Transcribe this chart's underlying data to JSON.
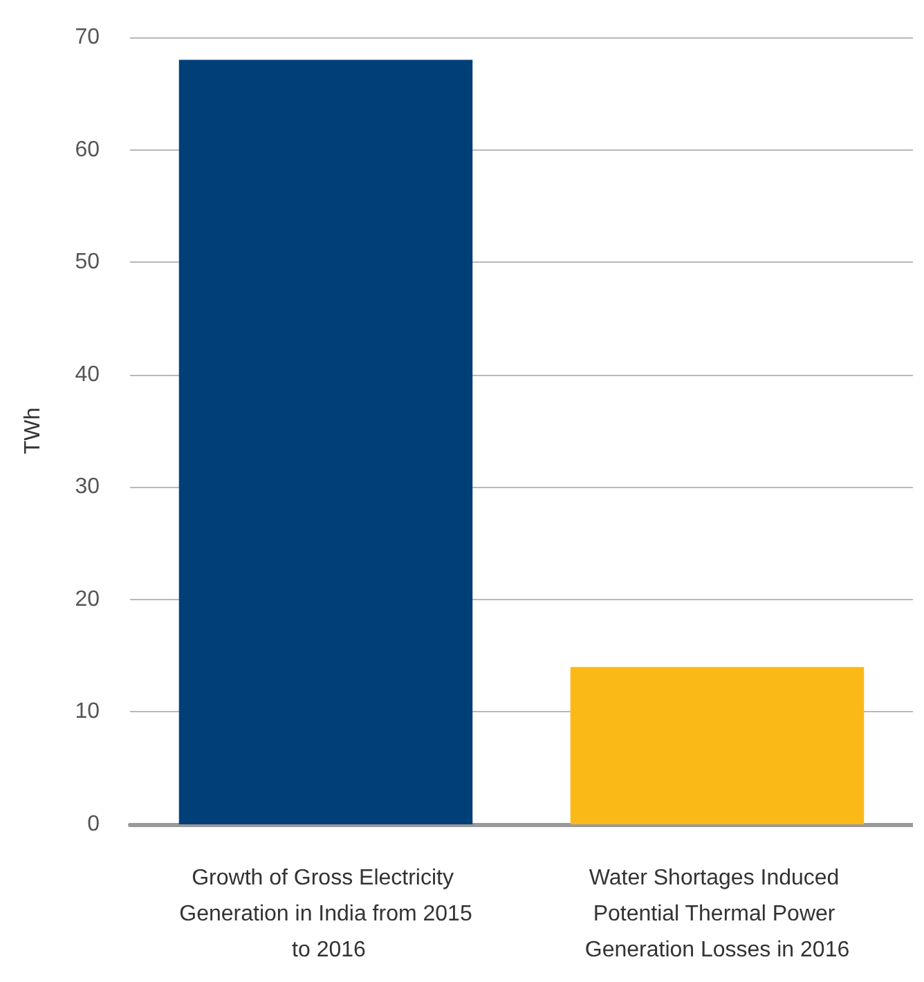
{
  "chart_data": {
    "type": "bar",
    "ylabel": "TWh",
    "categories": [
      "Growth of Gross Electricity Generation in India from 2015 to 2016",
      "Water Shortages Induced Potential Thermal Power Generation Losses in 2016"
    ],
    "values": [
      68,
      14
    ],
    "colors": [
      "#003f78",
      "#fbb917"
    ],
    "ylim": [
      0,
      70
    ],
    "yticks": [
      0,
      10,
      20,
      30,
      40,
      50,
      60,
      70
    ],
    "grid": "y"
  }
}
